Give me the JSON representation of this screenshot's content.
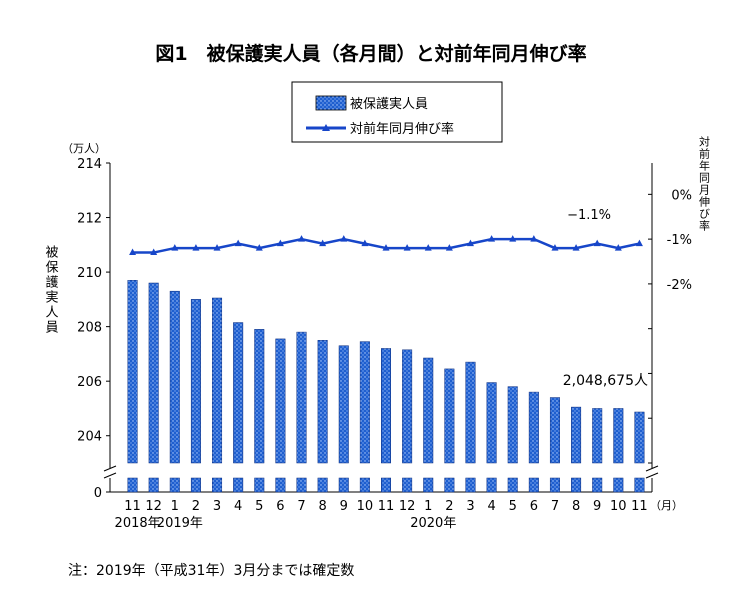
{
  "chart_data": {
    "type": "bar",
    "title": "図1　被保護実人員（各月間）と対前年同月伸び率",
    "categories": [
      "11",
      "12",
      "1",
      "2",
      "3",
      "4",
      "5",
      "6",
      "7",
      "8",
      "9",
      "10",
      "11",
      "12",
      "1",
      "2",
      "3",
      "4",
      "5",
      "6",
      "7",
      "8",
      "9",
      "10",
      "11"
    ],
    "year_labels": [
      {
        "text": "2018年",
        "category_index": 0
      },
      {
        "text": "2019年",
        "category_index": 2
      },
      {
        "text": "2020年",
        "category_index": 14
      }
    ],
    "x_unit": "（月）",
    "series": [
      {
        "name": "被保護実人員",
        "type": "bar",
        "axis": "left",
        "values": [
          209.7,
          209.6,
          209.3,
          209.0,
          209.05,
          208.15,
          207.9,
          207.55,
          207.8,
          207.5,
          207.3,
          207.45,
          207.2,
          207.15,
          206.85,
          206.45,
          206.7,
          205.95,
          205.8,
          205.6,
          205.4,
          205.05,
          205.0,
          205.0,
          204.87
        ]
      },
      {
        "name": "対前年同月伸び率",
        "type": "line",
        "axis": "right",
        "values": [
          -1.3,
          -1.3,
          -1.2,
          -1.2,
          -1.2,
          -1.1,
          -1.2,
          -1.1,
          -1.0,
          -1.1,
          -1.0,
          -1.1,
          -1.2,
          -1.2,
          -1.2,
          -1.2,
          -1.1,
          -1.0,
          -1.0,
          -1.0,
          -1.2,
          -1.2,
          -1.1,
          -1.2,
          -1.1
        ]
      }
    ],
    "left_axis": {
      "unit": "（万人）",
      "ylabel": "被保護実人員",
      "ticks": [
        "214",
        "212",
        "210",
        "208",
        "206",
        "204"
      ],
      "zero_tick": "0",
      "ylim": [
        203,
        214
      ]
    },
    "right_axis": {
      "ylabel": "対前年同月伸び率",
      "ticks": [
        "0%",
        "-1%",
        "-2%"
      ],
      "ylim": [
        -6,
        0.7
      ]
    },
    "annotations": {
      "last_rate": "−1.1%",
      "last_value": "2,048,675人"
    }
  },
  "note": "注：2019年（平成31年）3月分までは確定数"
}
